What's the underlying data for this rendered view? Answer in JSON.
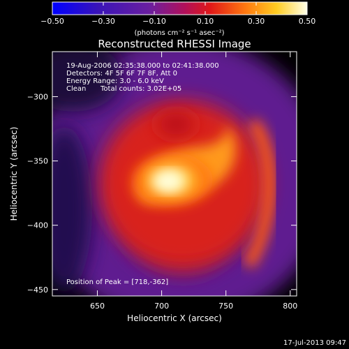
{
  "chart_data": {
    "type": "heatmap",
    "title": "Reconstructed RHESSI Image",
    "xlabel": "Heliocentric X (arcsec)",
    "ylabel": "Heliocentric Y (arcsec)",
    "xlim": [
      615,
      805
    ],
    "ylim": [
      -455,
      -265
    ],
    "xticks": [
      650,
      700,
      750,
      800
    ],
    "yticks": [
      -300,
      -350,
      -400,
      -450
    ],
    "grid": false,
    "colorbar": {
      "label": "(photons cm⁻² s⁻¹ asec⁻²)",
      "range": [
        -0.5,
        0.5
      ],
      "ticks": [
        "−0.50",
        "−0.30",
        "−0.10",
        "0.10",
        "0.30",
        "0.50"
      ],
      "colormap": "blue-purple-red-yellow-white"
    },
    "annotations": {
      "time_range": "19-Aug-2006 02:35:38.000 to 02:41:38.000",
      "detectors": "Detectors: 4F 5F 6F 7F 8F, Att 0",
      "energy_range": "Energy Range: 3.0 - 6.0 keV",
      "method": "Clean",
      "total_counts": "Total counts: 3.02E+05",
      "peak": "Position of Peak = [718,-362]"
    },
    "peak_position": [
      718,
      -362
    ],
    "date_stamp": "17-Jul-2013 09:47"
  }
}
